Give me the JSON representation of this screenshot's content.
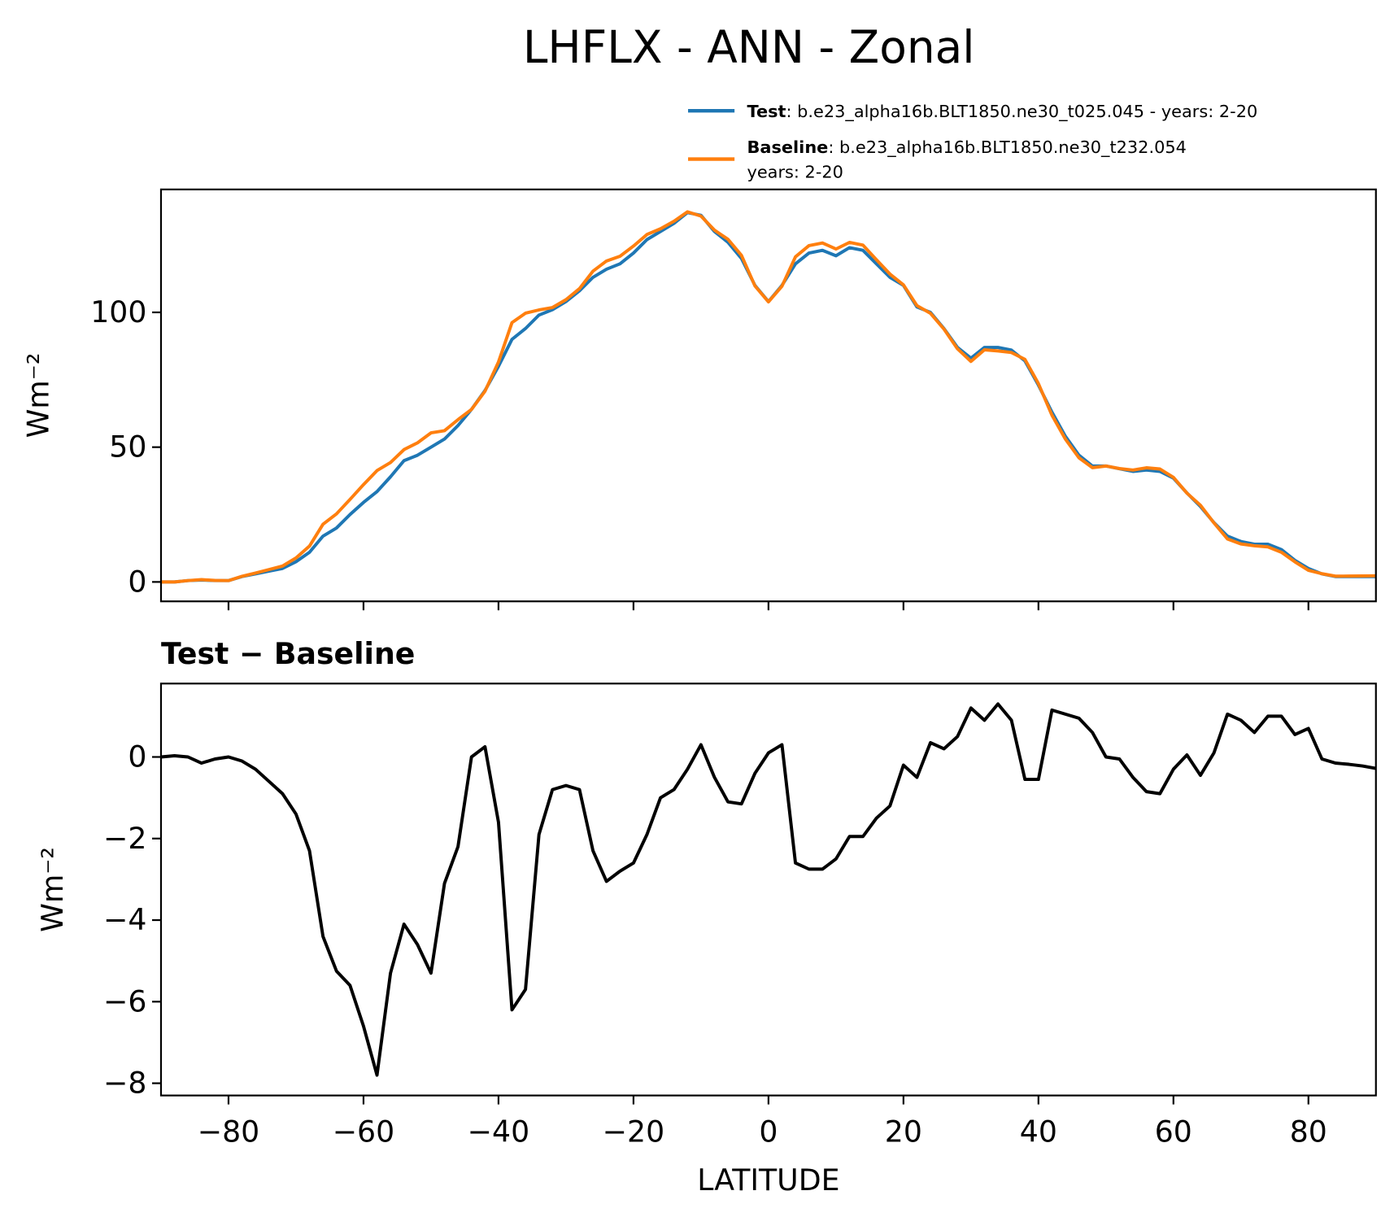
{
  "title": "LHFLX - ANN - Zonal",
  "chart_data": [
    {
      "type": "line",
      "sharex": true,
      "ylabel": "Wm⁻²",
      "x": [
        -90,
        -88,
        -86,
        -84,
        -82,
        -80,
        -78,
        -76,
        -74,
        -72,
        -70,
        -68,
        -66,
        -64,
        -62,
        -60,
        -58,
        -56,
        -54,
        -52,
        -50,
        -48,
        -46,
        -44,
        -42,
        -40,
        -38,
        -36,
        -34,
        -32,
        -30,
        -28,
        -26,
        -24,
        -22,
        -20,
        -18,
        -16,
        -14,
        -12,
        -10,
        -8,
        -6,
        -4,
        -2,
        0,
        2,
        4,
        6,
        8,
        10,
        12,
        14,
        16,
        18,
        20,
        22,
        24,
        26,
        28,
        30,
        32,
        34,
        36,
        38,
        40,
        42,
        44,
        46,
        48,
        50,
        52,
        54,
        56,
        58,
        60,
        62,
        64,
        66,
        68,
        70,
        72,
        74,
        76,
        78,
        80,
        82,
        84,
        86,
        88,
        90
      ],
      "series": [
        {
          "name": "Test",
          "label_lines": [
            ": b.e23_alpha16b.BLT1850.ne30_t025.045 - years: 2-20"
          ],
          "color": "#1f77b4",
          "values": [
            0,
            0,
            0.5,
            0.7,
            0.5,
            0.5,
            2,
            3,
            4,
            5,
            7.5,
            11,
            17,
            20,
            25,
            29.5,
            33.5,
            39,
            45,
            47,
            50,
            53,
            58,
            64,
            71,
            80,
            90,
            94,
            99,
            101,
            104,
            108,
            113,
            116,
            118,
            122,
            127,
            130,
            133,
            137,
            136,
            130,
            126,
            120,
            110,
            104,
            110,
            118,
            122,
            123,
            121,
            124,
            123,
            118,
            113,
            110,
            102,
            100,
            94,
            87,
            83,
            87,
            87,
            86,
            82,
            73,
            63,
            54,
            47,
            43,
            43,
            42,
            41,
            41.5,
            41,
            38.5,
            33,
            28,
            22,
            17,
            15,
            14,
            14,
            12,
            8,
            5,
            3,
            2,
            2,
            2,
            2
          ]
        },
        {
          "name": "Baseline",
          "label_lines": [
            ": b.e23_alpha16b.BLT1850.ne30_t232.054",
            "years: 2-20"
          ],
          "color": "#ff7f0e",
          "values": [
            0,
            0,
            0.5,
            0.85,
            0.55,
            0.5,
            2.1,
            3.3,
            4.6,
            5.9,
            8.9,
            13.3,
            21.4,
            25.25,
            30.6,
            36.1,
            41.3,
            44.3,
            49.1,
            51.6,
            55.3,
            56.1,
            60.2,
            64,
            70.75,
            81.6,
            96.2,
            99.7,
            100.9,
            101.8,
            104.7,
            108.8,
            115.3,
            119.05,
            120.8,
            124.6,
            128.9,
            131,
            133.8,
            137.3,
            135.7,
            130.5,
            127.1,
            121.15,
            109.8,
            103.9,
            109.7,
            120.6,
            124.75,
            125.75,
            123.5,
            125.95,
            124.95,
            119.5,
            114.2,
            110.2,
            102.5,
            99.65,
            93.8,
            86.5,
            81.8,
            86.1,
            85.7,
            85.1,
            82.55,
            73.55,
            61.85,
            52.95,
            46.05,
            42.4,
            43,
            42.05,
            41.5,
            42.35,
            41.9,
            38.8,
            32.95,
            28.45,
            21.9,
            15.95,
            14.1,
            13.4,
            13,
            11,
            7.45,
            4.3,
            3.05,
            2.15,
            2.18,
            2.22,
            2.28
          ]
        }
      ],
      "xlim": [
        -90,
        90
      ],
      "xticks": [
        -80,
        -60,
        -40,
        -20,
        0,
        20,
        40,
        60,
        80
      ],
      "ylim": [
        -7.2,
        145.6
      ],
      "yticks": [
        0,
        50,
        100
      ]
    },
    {
      "type": "line",
      "title": "Test − Baseline",
      "ylabel": "Wm⁻²",
      "xlabel": "LATITUDE",
      "x": [
        -90,
        -88,
        -86,
        -84,
        -82,
        -80,
        -78,
        -76,
        -74,
        -72,
        -70,
        -68,
        -66,
        -64,
        -62,
        -60,
        -58,
        -56,
        -54,
        -52,
        -50,
        -48,
        -46,
        -44,
        -42,
        -40,
        -38,
        -36,
        -34,
        -32,
        -30,
        -28,
        -26,
        -24,
        -22,
        -20,
        -18,
        -16,
        -14,
        -12,
        -10,
        -8,
        -6,
        -4,
        -2,
        0,
        2,
        4,
        6,
        8,
        10,
        12,
        14,
        16,
        18,
        20,
        22,
        24,
        26,
        28,
        30,
        32,
        34,
        36,
        38,
        40,
        42,
        44,
        46,
        48,
        50,
        52,
        54,
        56,
        58,
        60,
        62,
        64,
        66,
        68,
        70,
        72,
        74,
        76,
        78,
        80,
        82,
        84,
        86,
        88,
        90
      ],
      "series": [
        {
          "color": "#000000",
          "values": [
            0,
            0.03,
            0,
            -0.15,
            -0.05,
            0,
            -0.1,
            -0.3,
            -0.6,
            -0.9,
            -1.4,
            -2.3,
            -4.4,
            -5.25,
            -5.6,
            -6.6,
            -7.8,
            -5.3,
            -4.1,
            -4.6,
            -5.3,
            -3.1,
            -2.2,
            0,
            0.25,
            -1.6,
            -6.2,
            -5.7,
            -1.9,
            -0.8,
            -0.7,
            -0.8,
            -2.3,
            -3.05,
            -2.8,
            -2.6,
            -1.9,
            -1.0,
            -0.8,
            -0.3,
            0.3,
            -0.5,
            -1.1,
            -1.15,
            -0.4,
            0.1,
            0.3,
            -2.6,
            -2.75,
            -2.75,
            -2.5,
            -1.95,
            -1.95,
            -1.5,
            -1.2,
            -0.2,
            -0.5,
            0.35,
            0.2,
            0.5,
            1.2,
            0.9,
            1.3,
            0.9,
            -0.55,
            -0.55,
            1.15,
            1.05,
            0.95,
            0.6,
            0,
            -0.05,
            -0.5,
            -0.85,
            -0.9,
            -0.3,
            0.05,
            -0.45,
            0.1,
            1.05,
            0.9,
            0.6,
            1.0,
            1.0,
            0.55,
            0.7,
            -0.05,
            -0.15,
            -0.18,
            -0.22,
            -0.28
          ]
        }
      ],
      "xlim": [
        -90,
        90
      ],
      "xticks": [
        {
          "value": -80,
          "label": "−80"
        },
        {
          "value": -60,
          "label": "−60"
        },
        {
          "value": -40,
          "label": "−40"
        },
        {
          "value": -20,
          "label": "−20"
        },
        0,
        20,
        40,
        60,
        80
      ],
      "ylim": [
        -8.3,
        1.8
      ],
      "yticks": [
        {
          "value": -8,
          "label": "−8"
        },
        {
          "value": -6,
          "label": "−6"
        },
        {
          "value": -4,
          "label": "−4"
        },
        {
          "value": -2,
          "label": "−2"
        },
        0
      ]
    }
  ]
}
